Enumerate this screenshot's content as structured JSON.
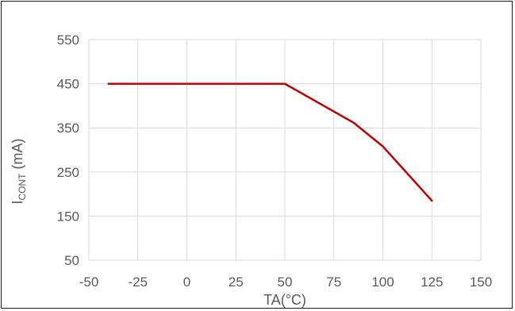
{
  "chart_data": {
    "type": "line",
    "title": "",
    "xlabel": "TA(°C)",
    "ylabel": "ICONT (mA)",
    "ylabel_parts": {
      "main": "I",
      "subscript": "CONT",
      "suffix": " (mA)"
    },
    "xlim": [
      -50,
      150
    ],
    "ylim": [
      50,
      550
    ],
    "x_ticks": [
      -50,
      -25,
      0,
      25,
      50,
      75,
      100,
      125,
      150
    ],
    "y_ticks": [
      50,
      150,
      250,
      350,
      450,
      550
    ],
    "grid": true,
    "legend": "none",
    "series": [
      {
        "color": "#c00000",
        "x": [
          -40,
          50,
          85,
          100,
          125
        ],
        "y": [
          450,
          450,
          362,
          308,
          185
        ]
      }
    ]
  }
}
